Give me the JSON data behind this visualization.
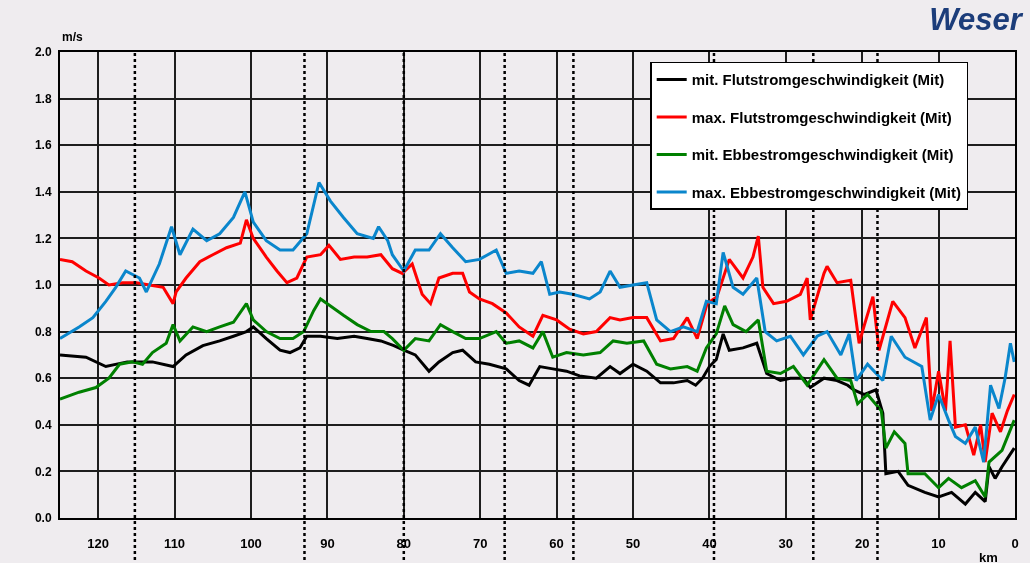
{
  "chart_data": {
    "type": "line",
    "title": "Weser",
    "xlabel": "km",
    "ylabel": "m/s",
    "xlim": [
      125,
      0
    ],
    "xticks": [
      120,
      110,
      100,
      90,
      80,
      70,
      60,
      50,
      40,
      30,
      20,
      10,
      0
    ],
    "ylim": [
      0,
      2
    ],
    "yticks": [
      {
        "value": 0,
        "label": "0.0"
      },
      0.2,
      0.4,
      0.6,
      0.8,
      {
        "value": 1,
        "label": "1.0"
      },
      1.2,
      1.4,
      1.6,
      1.8,
      {
        "value": 2,
        "label": "2.0"
      }
    ],
    "grid": true,
    "legend": "top right",
    "ref_lines": [
      {
        "axis": "x",
        "value": 115.2,
        "color": "#000000",
        "line_style": "dotted"
      },
      {
        "axis": "x",
        "value": 93.0,
        "color": "#000000",
        "line_style": "dotted"
      },
      {
        "axis": "x",
        "value": 80.0,
        "color": "#000000",
        "line_style": "dotted"
      },
      {
        "axis": "x",
        "value": 66.8,
        "color": "#000000",
        "line_style": "dotted"
      },
      {
        "axis": "x",
        "value": 57.8,
        "color": "#000000",
        "line_style": "dotted"
      },
      {
        "axis": "x",
        "value": 39.4,
        "color": "#000000",
        "line_style": "dotted"
      },
      {
        "axis": "x",
        "value": 26.4,
        "color": "#000000",
        "line_style": "dotted"
      },
      {
        "axis": "x",
        "value": 18.0,
        "color": "#000000",
        "line_style": "dotted"
      }
    ],
    "series": [
      {
        "name": "mit. Flutstromgeschwindigkeit (Mit)",
        "color": "#000000",
        "x": [
          125,
          121.6,
          119,
          116.2,
          114.6,
          112.9,
          110.2,
          108.5,
          106.3,
          104.1,
          102.3,
          100.6,
          99.7,
          98,
          96.2,
          94.9,
          93.6,
          92.7,
          90.9,
          88.7,
          86.5,
          84.8,
          83,
          81.3,
          80,
          78.5,
          76.7,
          75.4,
          73.6,
          72.3,
          70.6,
          68.8,
          66.6,
          64.9,
          63.6,
          62.2,
          60.5,
          58.7,
          57,
          54.8,
          53,
          51.7,
          50,
          48.2,
          46.4,
          44.7,
          42.9,
          41.8,
          40.9,
          40,
          39.1,
          38.2,
          37.4,
          35.6,
          33.8,
          32.5,
          30.7,
          29.4,
          27.7,
          26.8,
          25,
          23.3,
          21.9,
          21.1,
          19.7,
          18.2,
          17.3,
          16.9,
          15.3,
          14,
          11.8,
          10,
          8.3,
          6.5,
          5.2,
          3.9,
          3.4,
          2.6,
          1.7,
          0.1
        ],
        "values": [
          0.7,
          0.69,
          0.65,
          0.67,
          0.67,
          0.67,
          0.65,
          0.7,
          0.74,
          0.76,
          0.78,
          0.8,
          0.82,
          0.77,
          0.72,
          0.71,
          0.73,
          0.78,
          0.78,
          0.77,
          0.78,
          0.77,
          0.76,
          0.74,
          0.72,
          0.7,
          0.63,
          0.67,
          0.71,
          0.72,
          0.67,
          0.66,
          0.64,
          0.59,
          0.57,
          0.65,
          0.64,
          0.63,
          0.61,
          0.6,
          0.65,
          0.62,
          0.66,
          0.63,
          0.58,
          0.58,
          0.59,
          0.57,
          0.6,
          0.65,
          0.68,
          0.79,
          0.72,
          0.73,
          0.75,
          0.62,
          0.59,
          0.6,
          0.6,
          0.56,
          0.6,
          0.59,
          0.57,
          0.55,
          0.53,
          0.55,
          0.45,
          0.19,
          0.2,
          0.14,
          0.11,
          0.09,
          0.11,
          0.06,
          0.11,
          0.07,
          0.22,
          0.17,
          0.22,
          0.3
        ]
      },
      {
        "name": "max. Flutstromgeschwindigkeit (Mit)",
        "color": "#ff0000",
        "x": [
          125,
          123.4,
          121.6,
          119.9,
          118.6,
          116.8,
          115,
          113.3,
          111.5,
          110.2,
          109.8,
          108.5,
          106.7,
          105,
          103.2,
          101.4,
          100.6,
          99.7,
          98,
          96.6,
          95.3,
          94,
          92.7,
          90.9,
          89.8,
          88.3,
          86.5,
          84.8,
          83,
          81.5,
          80.2,
          78.9,
          77.6,
          76.5,
          75.4,
          73.6,
          72.3,
          71.4,
          70.1,
          68.4,
          66.6,
          64.9,
          63.1,
          61.8,
          60,
          58.3,
          56.5,
          54.8,
          53,
          51.7,
          50,
          48.2,
          46.4,
          44.7,
          42.9,
          41.6,
          40.3,
          39,
          37.4,
          35.6,
          34.3,
          33.6,
          33,
          31.6,
          29.9,
          28.1,
          27.2,
          26.8,
          25,
          24.6,
          23.3,
          21.5,
          20.4,
          19.7,
          18.6,
          17.8,
          16,
          14.4,
          13.1,
          11.6,
          10.9,
          10,
          9.1,
          8.5,
          7.8,
          6.5,
          5.4,
          4.5,
          3.9,
          3,
          1.9,
          1,
          0.1
        ],
        "values": [
          1.11,
          1.1,
          1.06,
          1.03,
          1.0,
          1.01,
          1.01,
          1.0,
          0.99,
          0.92,
          0.97,
          1.03,
          1.1,
          1.13,
          1.16,
          1.18,
          1.28,
          1.2,
          1.12,
          1.06,
          1.01,
          1.03,
          1.12,
          1.13,
          1.17,
          1.11,
          1.12,
          1.12,
          1.13,
          1.07,
          1.05,
          1.09,
          0.96,
          0.92,
          1.03,
          1.05,
          1.05,
          0.97,
          0.94,
          0.92,
          0.88,
          0.82,
          0.78,
          0.87,
          0.85,
          0.81,
          0.79,
          0.8,
          0.86,
          0.85,
          0.86,
          0.86,
          0.76,
          0.77,
          0.86,
          0.77,
          0.92,
          0.95,
          1.11,
          1.03,
          1.12,
          1.21,
          0.99,
          0.92,
          0.93,
          0.96,
          1.03,
          0.85,
          1.05,
          1.08,
          1.01,
          1.02,
          0.75,
          0.83,
          0.95,
          0.72,
          0.93,
          0.86,
          0.73,
          0.86,
          0.46,
          0.63,
          0.46,
          0.76,
          0.39,
          0.4,
          0.27,
          0.4,
          0.24,
          0.45,
          0.37,
          0.46,
          0.53
        ]
      },
      {
        "name": "mit. Ebbestromgeschwindigkeit (Mit)",
        "color": "#008000",
        "x": [
          125,
          122.5,
          120.3,
          118.6,
          117.2,
          115.5,
          114.2,
          112.9,
          111.1,
          110.2,
          109.3,
          107.6,
          105.8,
          104.1,
          102.3,
          100.6,
          99.7,
          98,
          96.2,
          94.5,
          93.1,
          91.8,
          90.9,
          89.6,
          87.9,
          86.1,
          84.3,
          82.6,
          81.5,
          80,
          78.5,
          76.7,
          75.2,
          73.6,
          71.9,
          70.1,
          67.9,
          66.6,
          64.9,
          63.1,
          61.8,
          60.5,
          58.7,
          56.5,
          54.3,
          52.6,
          50.8,
          48.6,
          46.9,
          45.1,
          42.9,
          41.6,
          40.4,
          39.1,
          38,
          36.9,
          35.2,
          33.6,
          32.5,
          30.7,
          29,
          27.2,
          25,
          23.3,
          21.5,
          20.6,
          19.3,
          17.5,
          16.9,
          15.8,
          14.4,
          14,
          11.8,
          10,
          8.7,
          7,
          5.2,
          3.9,
          3.4,
          1.7,
          0.1
        ],
        "values": [
          0.51,
          0.54,
          0.56,
          0.6,
          0.66,
          0.67,
          0.66,
          0.71,
          0.75,
          0.83,
          0.76,
          0.82,
          0.8,
          0.82,
          0.84,
          0.92,
          0.85,
          0.8,
          0.77,
          0.77,
          0.8,
          0.89,
          0.94,
          0.91,
          0.87,
          0.83,
          0.8,
          0.8,
          0.77,
          0.72,
          0.77,
          0.76,
          0.83,
          0.8,
          0.77,
          0.77,
          0.8,
          0.75,
          0.76,
          0.73,
          0.8,
          0.69,
          0.71,
          0.7,
          0.71,
          0.76,
          0.75,
          0.76,
          0.66,
          0.64,
          0.65,
          0.63,
          0.73,
          0.79,
          0.91,
          0.83,
          0.8,
          0.85,
          0.63,
          0.62,
          0.65,
          0.57,
          0.68,
          0.6,
          0.59,
          0.49,
          0.53,
          0.46,
          0.3,
          0.37,
          0.32,
          0.19,
          0.19,
          0.13,
          0.17,
          0.13,
          0.16,
          0.09,
          0.24,
          0.29,
          0.42
        ]
      },
      {
        "name": "max. Ebbestromgeschwindigkeit (Mit)",
        "color": "#0a86cc",
        "x": [
          125,
          122.5,
          120.7,
          119,
          117.7,
          116.4,
          114.6,
          113.7,
          112,
          110.4,
          109.3,
          107.6,
          105.8,
          104.1,
          102.3,
          100.8,
          99.7,
          98,
          96.2,
          94.5,
          92.7,
          91.1,
          89.6,
          87.9,
          86.1,
          84,
          83.3,
          82.1,
          81.5,
          80,
          78.5,
          76.7,
          75.2,
          73.6,
          71.9,
          70.1,
          67.9,
          66.6,
          64.9,
          63.1,
          62,
          60.9,
          59.6,
          57.9,
          55.7,
          54.3,
          53,
          51.7,
          50,
          48.2,
          46.9,
          45.1,
          43.4,
          41.6,
          40.4,
          39.1,
          38.2,
          36.9,
          35.6,
          33.8,
          32.7,
          31.2,
          29.4,
          27.7,
          25.9,
          24.6,
          22.8,
          21.7,
          20.8,
          19.3,
          17.3,
          16.2,
          14.4,
          12.2,
          11.1,
          10,
          8.7,
          7.8,
          6.5,
          5.2,
          4.1,
          3.2,
          2.1,
          1.3,
          0.6,
          0.1
        ],
        "values": [
          0.77,
          0.82,
          0.86,
          0.93,
          0.99,
          1.06,
          1.03,
          0.97,
          1.09,
          1.25,
          1.13,
          1.24,
          1.19,
          1.22,
          1.29,
          1.4,
          1.27,
          1.19,
          1.15,
          1.15,
          1.22,
          1.44,
          1.36,
          1.29,
          1.22,
          1.2,
          1.25,
          1.19,
          1.13,
          1.06,
          1.15,
          1.15,
          1.22,
          1.16,
          1.1,
          1.11,
          1.15,
          1.05,
          1.06,
          1.05,
          1.1,
          0.96,
          0.97,
          0.96,
          0.94,
          0.97,
          1.06,
          0.99,
          1.0,
          1.01,
          0.85,
          0.8,
          0.82,
          0.8,
          0.93,
          0.92,
          1.14,
          0.99,
          0.96,
          1.03,
          0.8,
          0.76,
          0.78,
          0.7,
          0.78,
          0.8,
          0.7,
          0.79,
          0.59,
          0.66,
          0.59,
          0.78,
          0.69,
          0.65,
          0.42,
          0.53,
          0.42,
          0.35,
          0.32,
          0.39,
          0.24,
          0.57,
          0.47,
          0.6,
          0.75,
          0.67
        ]
      }
    ]
  }
}
